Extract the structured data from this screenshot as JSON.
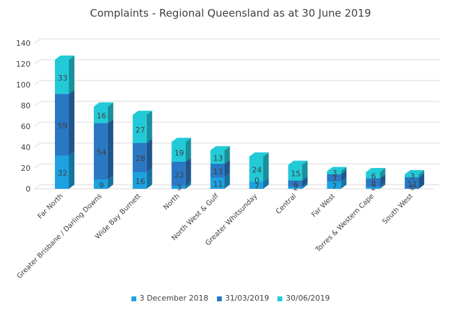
{
  "chart_data": {
    "type": "bar",
    "stacked": true,
    "style": "3d",
    "title": "Complaints - Regional Queensland as at 30 June 2019",
    "xlabel": "",
    "ylabel": "",
    "ylim": [
      0,
      140
    ],
    "yticks": [
      "0",
      "20",
      "40",
      "60",
      "80",
      "100",
      "120",
      "140"
    ],
    "grid": true,
    "legend_position": "bottom",
    "categories": [
      "Far North",
      "Greater Brisbane / Darling Downs",
      "Wide Bay Burnett",
      "North",
      "North West & Gulf",
      "Greater Whitsunday",
      "Central",
      "Far West",
      "Torres & Western Cape",
      "South West"
    ],
    "series": [
      {
        "name": "3 December 2018",
        "color": "#1da1e0",
        "values": [
          32,
          9,
          16,
          3,
          11,
          7,
          2,
          7,
          2,
          0
        ]
      },
      {
        "name": "31/03/2019",
        "color": "#2a78c4",
        "values": [
          59,
          54,
          28,
          23,
          13,
          0,
          6,
          7,
          8,
          11
        ]
      },
      {
        "name": "30/06/2019",
        "color": "#22cad8",
        "values": [
          33,
          16,
          27,
          19,
          13,
          24,
          15,
          3,
          6,
          3
        ]
      }
    ]
  }
}
